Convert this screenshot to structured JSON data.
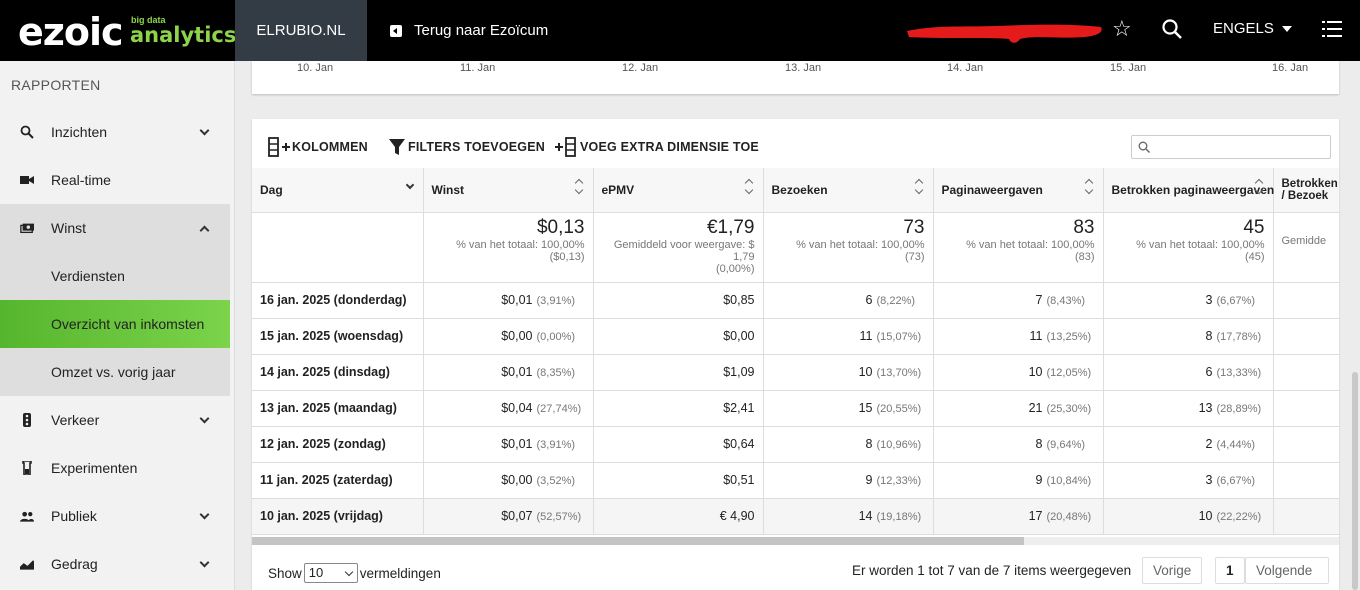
{
  "topbar": {
    "logo_main": "ezoic",
    "logo_small": "big data",
    "logo_sub": "analytics",
    "site": "ELRUBIO.NL",
    "back_label": "Terug naar Ezoïcum",
    "language": "ENGELS",
    "icons": [
      "star-icon",
      "search-icon",
      "menu-icon"
    ]
  },
  "sidebar": {
    "heading": "RAPPORTEN",
    "items": [
      {
        "label": "Inzichten",
        "icon": "search-icon"
      },
      {
        "label": "Real-time",
        "icon": "camera-icon"
      },
      {
        "label": "Winst",
        "icon": "money-icon"
      },
      {
        "label": "Verkeer",
        "icon": "traffic-icon"
      },
      {
        "label": "Experimenten",
        "icon": "flask-icon"
      },
      {
        "label": "Publiek",
        "icon": "people-icon"
      },
      {
        "label": "Gedrag",
        "icon": "chart-icon"
      }
    ],
    "sub_items": [
      "Verdiensten",
      "Overzicht van inkomsten",
      "Omzet vs. vorig jaar"
    ],
    "accent_color": "#67c23a"
  },
  "chart": {
    "x_ticks": [
      "10. Jan",
      "11. Jan",
      "12. Jan",
      "13. Jan",
      "14. Jan",
      "15. Jan",
      "16. Jan"
    ]
  },
  "toolbar": {
    "columns": "KOLOMMEN",
    "filters": "FILTERS TOEVOEGEN",
    "dimension": "VOEG EXTRA DIMENSIE TOE",
    "search_placeholder": ""
  },
  "table": {
    "headers": [
      "Dag",
      "Winst",
      "ePMV",
      "Bezoeken",
      "Paginaweergaven",
      "Betrokken paginaweergaven",
      "Betrokken / Bezoek"
    ],
    "totals": {
      "winst": {
        "value": "$0,13",
        "sub1": "% van het totaal: 100,00%",
        "sub2": "($0,13)"
      },
      "epmv": {
        "value": "€1,79",
        "sub1": "Gemiddeld voor weergave: $",
        "sub1b": "1,79",
        "sub2": "(0,00%)"
      },
      "bezoeken": {
        "value": "73",
        "sub1": "% van het totaal: 100,00%",
        "sub2": "(73)"
      },
      "pagina": {
        "value": "83",
        "sub1": "% van het totaal: 100,00%",
        "sub2": "(83)"
      },
      "betrokken": {
        "value": "45",
        "sub1": "% van het totaal: 100,00%",
        "sub2": "(45)"
      },
      "perbezoek": {
        "sub1": "Gemidde"
      }
    },
    "rows": [
      {
        "day": "16 jan. 2025 (donderdag)",
        "winst": "$0,01",
        "winst_pct": "(3,91%)",
        "epmv": "$0,85",
        "bez": "6",
        "bez_pct": "(8,22%)",
        "pag": "7",
        "pag_pct": "(8,43%)",
        "bet": "3",
        "bet_pct": "(6,67%)"
      },
      {
        "day": "15 jan. 2025 (woensdag)",
        "winst": "$0,00",
        "winst_pct": "(0,00%)",
        "epmv": "$0,00",
        "bez": "11",
        "bez_pct": "(15,07%)",
        "pag": "11",
        "pag_pct": "(13,25%)",
        "bet": "8",
        "bet_pct": "(17,78%)"
      },
      {
        "day": "14 jan. 2025 (dinsdag)",
        "winst": "$0,01",
        "winst_pct": "(8,35%)",
        "epmv": "$1,09",
        "bez": "10",
        "bez_pct": "(13,70%)",
        "pag": "10",
        "pag_pct": "(12,05%)",
        "bet": "6",
        "bet_pct": "(13,33%)"
      },
      {
        "day": "13 jan. 2025 (maandag)",
        "winst": "$0,04",
        "winst_pct": "(27,74%)",
        "epmv": "$2,41",
        "bez": "15",
        "bez_pct": "(20,55%)",
        "pag": "21",
        "pag_pct": "(25,30%)",
        "bet": "13",
        "bet_pct": "(28,89%)"
      },
      {
        "day": "12 jan. 2025 (zondag)",
        "winst": "$0,01",
        "winst_pct": "(3,91%)",
        "epmv": "$0,64",
        "bez": "8",
        "bez_pct": "(10,96%)",
        "pag": "8",
        "pag_pct": "(9,64%)",
        "bet": "2",
        "bet_pct": "(4,44%)"
      },
      {
        "day": "11 jan. 2025 (zaterdag)",
        "winst": "$0,00",
        "winst_pct": "(3,52%)",
        "epmv": "$0,51",
        "bez": "9",
        "bez_pct": "(12,33%)",
        "pag": "9",
        "pag_pct": "(10,84%)",
        "bet": "3",
        "bet_pct": "(6,67%)"
      },
      {
        "day": "10 jan. 2025 (vrijdag)",
        "winst": "$0,07",
        "winst_pct": "(52,57%)",
        "epmv": "€ 4,90",
        "bez": "14",
        "bez_pct": "(19,18%)",
        "pag": "17",
        "pag_pct": "(20,48%)",
        "bet": "10",
        "bet_pct": "(22,22%)"
      }
    ]
  },
  "footer": {
    "show": "Show",
    "page_size": "10",
    "entries": "vermeldingen",
    "info": "Er worden 1 tot 7 van de 7 items weergegeven",
    "prev": "Vorige",
    "page": "1",
    "next": "Volgende"
  }
}
